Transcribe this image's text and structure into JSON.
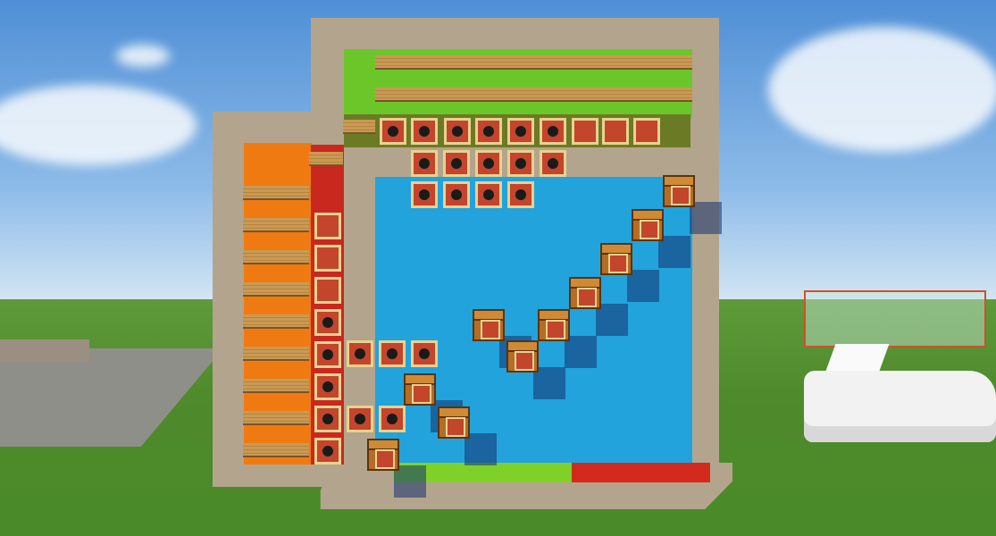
{
  "scene": {
    "type": "minecraft-build",
    "colors": {
      "sky": "#8dbbe8",
      "grass": "#5f9a3a",
      "wall": "#b3a58d",
      "lime": "#6cc62a",
      "orange": "#f07a12",
      "red": "#c8281e",
      "blue": "#22a3dc",
      "frame": "#c2452c",
      "chest": "#b46d25"
    },
    "elements": [
      "sign-rows",
      "item-frames",
      "chests",
      "greenhouse",
      "car"
    ]
  }
}
